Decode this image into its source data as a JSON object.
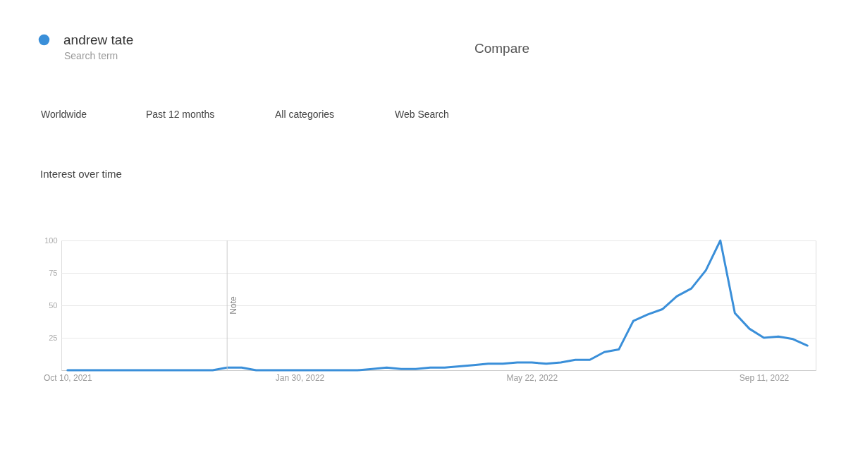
{
  "chart_data": {
    "type": "line",
    "title": "Interest over time",
    "annotations": [
      "Compare",
      "Worldwide",
      "Past 12 months",
      "All categories",
      "Web Search"
    ],
    "legend": "top left",
    "legend_title": "Search term",
    "x": [
      "2021-10-10",
      "2021-10-17",
      "2021-10-24",
      "2021-10-31",
      "2021-11-07",
      "2021-11-14",
      "2021-11-21",
      "2021-11-28",
      "2021-12-05",
      "2021-12-12",
      "2021-12-19",
      "2021-12-26",
      "2022-01-02",
      "2022-01-09",
      "2022-01-16",
      "2022-01-23",
      "2022-01-30",
      "2022-02-06",
      "2022-02-13",
      "2022-02-20",
      "2022-02-27",
      "2022-03-06",
      "2022-03-13",
      "2022-03-20",
      "2022-03-27",
      "2022-04-03",
      "2022-04-10",
      "2022-04-17",
      "2022-04-24",
      "2022-05-01",
      "2022-05-08",
      "2022-05-15",
      "2022-05-22",
      "2022-05-29",
      "2022-06-05",
      "2022-06-12",
      "2022-06-19",
      "2022-06-26",
      "2022-07-03",
      "2022-07-10",
      "2022-07-17",
      "2022-07-24",
      "2022-07-31",
      "2022-08-07",
      "2022-08-14",
      "2022-08-21",
      "2022-08-28",
      "2022-09-04",
      "2022-09-11",
      "2022-09-18",
      "2022-09-25",
      "2022-10-02"
    ],
    "series": [
      {
        "name": "andrew tate",
        "color": "#3a8fd9",
        "values": [
          0,
          0,
          0,
          0,
          0,
          0,
          0,
          0,
          0,
          0,
          0,
          2,
          2,
          0,
          0,
          0,
          0,
          0,
          0,
          0,
          0,
          1,
          2,
          1,
          1,
          2,
          2,
          3,
          4,
          5,
          5,
          6,
          6,
          5,
          6,
          8,
          8,
          14,
          16,
          38,
          43,
          47,
          57,
          63,
          77,
          100,
          44,
          32,
          25,
          26,
          24,
          19
        ]
      }
    ],
    "xlim": [
      "2021-10-07",
      "2022-10-06"
    ],
    "xticks": [
      {
        "value": "2021-10-10",
        "label": "Oct 10, 2021"
      },
      {
        "value": "2022-01-30",
        "label": "Jan 30, 2022"
      },
      {
        "value": "2022-05-22",
        "label": "May 22, 2022"
      },
      {
        "value": "2022-09-11",
        "label": "Sep 11, 2022"
      }
    ],
    "ylim": [
      0,
      100
    ],
    "yticks": [
      25,
      50,
      75,
      100
    ],
    "grid": "y",
    "line_style": "solid",
    "ref_lines": [
      {
        "axis": "x",
        "value": "2021-12-26",
        "label": "Note"
      }
    ]
  }
}
